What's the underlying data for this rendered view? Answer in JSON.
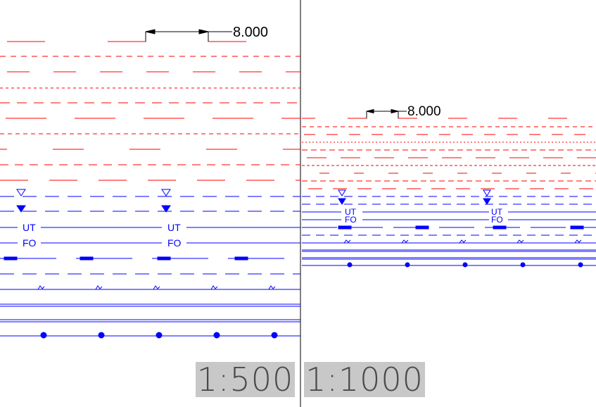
{
  "panels": {
    "left": {
      "scale": "1:500",
      "dimension": "8.000",
      "labels": {
        "ut": "UT",
        "fo": "FO"
      }
    },
    "right": {
      "scale": "1:1000",
      "dimension": "8.000",
      "labels": {
        "ut": "UT",
        "fo": "FO"
      }
    }
  },
  "colors": {
    "red": "#ff0000",
    "blue": "#0000ff",
    "black": "#000000",
    "label_bg": "#c8c8c8"
  }
}
